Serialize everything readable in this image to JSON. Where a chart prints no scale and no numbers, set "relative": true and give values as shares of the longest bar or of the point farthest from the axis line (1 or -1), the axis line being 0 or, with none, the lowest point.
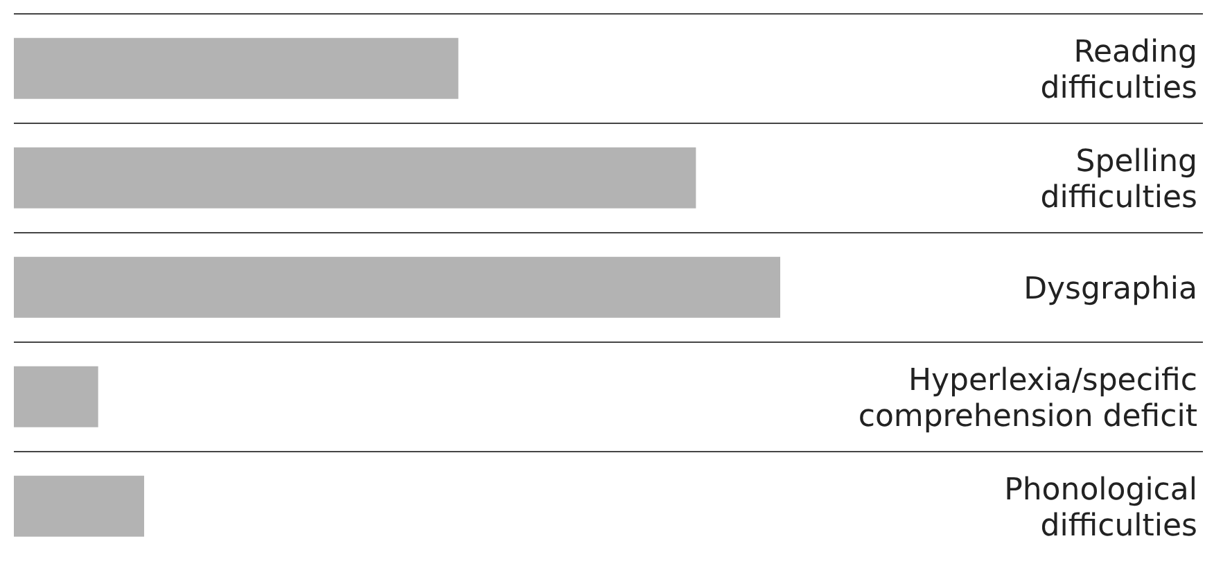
{
  "chart_data": {
    "type": "bar",
    "orientation": "horizontal",
    "relative": true,
    "categories": [
      "Reading difficulties",
      "Spelling difficulties",
      "Dysgraphia",
      "Hyperlexia/specific comprehension deficit",
      "Phonological difficulties"
    ],
    "values": [
      0.58,
      0.89,
      1,
      0.11,
      0.17
    ],
    "color": "#b3b3b3"
  }
}
